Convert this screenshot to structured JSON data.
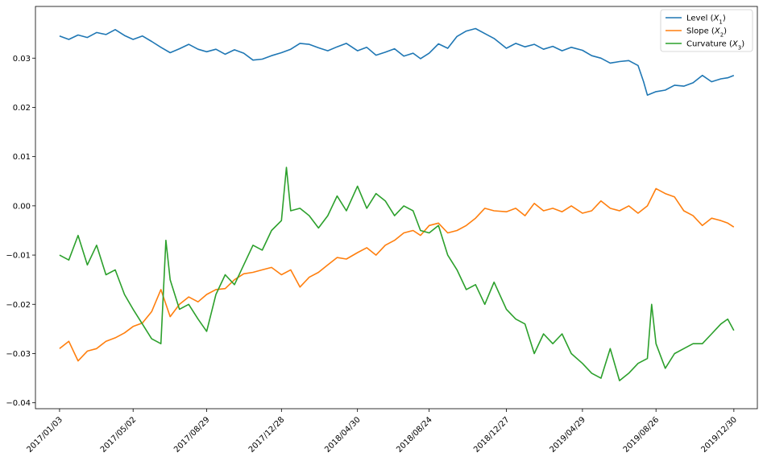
{
  "chart_data": {
    "type": "line",
    "title": "",
    "xlabel": "",
    "ylabel": "",
    "x_type": "date",
    "xlim": [
      "2016-11-25",
      "2020-02-06"
    ],
    "ylim": [
      -0.0412,
      0.0405
    ],
    "grid": false,
    "legend_position": "top-right",
    "x_ticks": [
      {
        "date": "2017-01-03",
        "label": "2017/01/03"
      },
      {
        "date": "2017-05-02",
        "label": "2017/05/02"
      },
      {
        "date": "2017-08-29",
        "label": "2017/08/29"
      },
      {
        "date": "2017-12-28",
        "label": "2017/12/28"
      },
      {
        "date": "2018-04-30",
        "label": "2018/04/30"
      },
      {
        "date": "2018-08-24",
        "label": "2018/08/24"
      },
      {
        "date": "2018-12-27",
        "label": "2018/12/27"
      },
      {
        "date": "2019-04-29",
        "label": "2019/04/29"
      },
      {
        "date": "2019-08-26",
        "label": "2019/08/26"
      },
      {
        "date": "2019-12-30",
        "label": "2019/12/30"
      }
    ],
    "y_ticks": [
      {
        "value": 0.03,
        "label": "0.03"
      },
      {
        "value": 0.02,
        "label": "0.02"
      },
      {
        "value": 0.01,
        "label": "0.01"
      },
      {
        "value": 0.0,
        "label": "0.00"
      },
      {
        "value": -0.01,
        "label": "−0.01"
      },
      {
        "value": -0.02,
        "label": "−0.02"
      },
      {
        "value": -0.03,
        "label": "−0.03"
      },
      {
        "value": -0.04,
        "label": "−0.04"
      }
    ],
    "series": [
      {
        "name": "Level (X1)",
        "legend_main": "Level (",
        "legend_var": "X",
        "legend_sub": "1",
        "legend_close": ")",
        "color": "#1f77b4",
        "points": [
          [
            "2017-01-03",
            0.0345
          ],
          [
            "2017-01-18",
            0.0338
          ],
          [
            "2017-02-02",
            0.0347
          ],
          [
            "2017-02-17",
            0.0342
          ],
          [
            "2017-03-04",
            0.0352
          ],
          [
            "2017-03-19",
            0.0348
          ],
          [
            "2017-04-03",
            0.0358
          ],
          [
            "2017-04-18",
            0.0346
          ],
          [
            "2017-05-02",
            0.0338
          ],
          [
            "2017-05-17",
            0.0345
          ],
          [
            "2017-06-01",
            0.0334
          ],
          [
            "2017-06-16",
            0.0322
          ],
          [
            "2017-07-01",
            0.0311
          ],
          [
            "2017-07-16",
            0.0319
          ],
          [
            "2017-07-31",
            0.0328
          ],
          [
            "2017-08-15",
            0.0318
          ],
          [
            "2017-08-29",
            0.0313
          ],
          [
            "2017-09-13",
            0.0318
          ],
          [
            "2017-09-28",
            0.0308
          ],
          [
            "2017-10-13",
            0.0317
          ],
          [
            "2017-10-28",
            0.031
          ],
          [
            "2017-11-12",
            0.0296
          ],
          [
            "2017-11-27",
            0.0298
          ],
          [
            "2017-12-12",
            0.0305
          ],
          [
            "2017-12-28",
            0.0311
          ],
          [
            "2018-01-12",
            0.0318
          ],
          [
            "2018-01-27",
            0.033
          ],
          [
            "2018-02-11",
            0.0328
          ],
          [
            "2018-02-26",
            0.0321
          ],
          [
            "2018-03-13",
            0.0315
          ],
          [
            "2018-03-28",
            0.0323
          ],
          [
            "2018-04-12",
            0.033
          ],
          [
            "2018-04-30",
            0.0315
          ],
          [
            "2018-05-15",
            0.0322
          ],
          [
            "2018-05-30",
            0.0306
          ],
          [
            "2018-06-14",
            0.0312
          ],
          [
            "2018-06-29",
            0.0319
          ],
          [
            "2018-07-14",
            0.0304
          ],
          [
            "2018-07-29",
            0.031
          ],
          [
            "2018-08-10",
            0.0299
          ],
          [
            "2018-08-24",
            0.031
          ],
          [
            "2018-09-08",
            0.0329
          ],
          [
            "2018-09-23",
            0.032
          ],
          [
            "2018-10-08",
            0.0344
          ],
          [
            "2018-10-23",
            0.0355
          ],
          [
            "2018-11-07",
            0.036
          ],
          [
            "2018-11-22",
            0.035
          ],
          [
            "2018-12-07",
            0.034
          ],
          [
            "2018-12-27",
            0.032
          ],
          [
            "2019-01-11",
            0.033
          ],
          [
            "2019-01-26",
            0.0323
          ],
          [
            "2019-02-10",
            0.0328
          ],
          [
            "2019-02-25",
            0.0318
          ],
          [
            "2019-03-12",
            0.0324
          ],
          [
            "2019-03-27",
            0.0315
          ],
          [
            "2019-04-11",
            0.0322
          ],
          [
            "2019-04-29",
            0.0316
          ],
          [
            "2019-05-14",
            0.0305
          ],
          [
            "2019-05-29",
            0.03
          ],
          [
            "2019-06-13",
            0.029
          ],
          [
            "2019-06-28",
            0.0293
          ],
          [
            "2019-07-13",
            0.0295
          ],
          [
            "2019-07-28",
            0.0285
          ],
          [
            "2019-08-06",
            0.0252
          ],
          [
            "2019-08-12",
            0.0225
          ],
          [
            "2019-08-26",
            0.0232
          ],
          [
            "2019-09-10",
            0.0235
          ],
          [
            "2019-09-25",
            0.0245
          ],
          [
            "2019-10-10",
            0.0243
          ],
          [
            "2019-10-25",
            0.025
          ],
          [
            "2019-11-09",
            0.0265
          ],
          [
            "2019-11-24",
            0.0252
          ],
          [
            "2019-12-09",
            0.0258
          ],
          [
            "2019-12-20",
            0.026
          ],
          [
            "2019-12-30",
            0.0265
          ]
        ]
      },
      {
        "name": "Slope (X2)",
        "legend_main": "Slope (",
        "legend_var": "X",
        "legend_sub": "2",
        "legend_close": ")",
        "color": "#ff7f0e",
        "points": [
          [
            "2017-01-03",
            -0.029
          ],
          [
            "2017-01-18",
            -0.0275
          ],
          [
            "2017-02-02",
            -0.0315
          ],
          [
            "2017-02-17",
            -0.0295
          ],
          [
            "2017-03-04",
            -0.029
          ],
          [
            "2017-03-19",
            -0.0275
          ],
          [
            "2017-04-03",
            -0.0268
          ],
          [
            "2017-04-18",
            -0.0258
          ],
          [
            "2017-05-02",
            -0.0245
          ],
          [
            "2017-05-17",
            -0.0238
          ],
          [
            "2017-06-01",
            -0.0215
          ],
          [
            "2017-06-16",
            -0.017
          ],
          [
            "2017-07-01",
            -0.0225
          ],
          [
            "2017-07-16",
            -0.02
          ],
          [
            "2017-07-31",
            -0.0185
          ],
          [
            "2017-08-15",
            -0.0195
          ],
          [
            "2017-08-29",
            -0.018
          ],
          [
            "2017-09-13",
            -0.017
          ],
          [
            "2017-09-28",
            -0.0168
          ],
          [
            "2017-10-13",
            -0.015
          ],
          [
            "2017-10-28",
            -0.0138
          ],
          [
            "2017-11-12",
            -0.0135
          ],
          [
            "2017-11-27",
            -0.013
          ],
          [
            "2017-12-12",
            -0.0125
          ],
          [
            "2017-12-28",
            -0.014
          ],
          [
            "2018-01-12",
            -0.013
          ],
          [
            "2018-01-27",
            -0.0165
          ],
          [
            "2018-02-11",
            -0.0145
          ],
          [
            "2018-02-26",
            -0.0135
          ],
          [
            "2018-03-13",
            -0.012
          ],
          [
            "2018-03-28",
            -0.0105
          ],
          [
            "2018-04-12",
            -0.0108
          ],
          [
            "2018-04-30",
            -0.0095
          ],
          [
            "2018-05-15",
            -0.0085
          ],
          [
            "2018-05-30",
            -0.01
          ],
          [
            "2018-06-14",
            -0.008
          ],
          [
            "2018-06-29",
            -0.007
          ],
          [
            "2018-07-14",
            -0.0055
          ],
          [
            "2018-07-29",
            -0.005
          ],
          [
            "2018-08-10",
            -0.006
          ],
          [
            "2018-08-24",
            -0.004
          ],
          [
            "2018-09-08",
            -0.0035
          ],
          [
            "2018-09-23",
            -0.0055
          ],
          [
            "2018-10-08",
            -0.005
          ],
          [
            "2018-10-23",
            -0.004
          ],
          [
            "2018-11-07",
            -0.0025
          ],
          [
            "2018-11-22",
            -0.0005
          ],
          [
            "2018-12-07",
            -0.001
          ],
          [
            "2018-12-27",
            -0.0012
          ],
          [
            "2019-01-11",
            -0.0005
          ],
          [
            "2019-01-26",
            -0.002
          ],
          [
            "2019-02-10",
            0.0005
          ],
          [
            "2019-02-25",
            -0.001
          ],
          [
            "2019-03-12",
            -0.0005
          ],
          [
            "2019-03-27",
            -0.0012
          ],
          [
            "2019-04-11",
            0.0
          ],
          [
            "2019-04-29",
            -0.0015
          ],
          [
            "2019-05-14",
            -0.001
          ],
          [
            "2019-05-29",
            0.001
          ],
          [
            "2019-06-13",
            -0.0005
          ],
          [
            "2019-06-28",
            -0.001
          ],
          [
            "2019-07-13",
            0.0
          ],
          [
            "2019-07-28",
            -0.0015
          ],
          [
            "2019-08-12",
            0.0
          ],
          [
            "2019-08-26",
            0.0035
          ],
          [
            "2019-09-10",
            0.0025
          ],
          [
            "2019-09-25",
            0.0018
          ],
          [
            "2019-10-10",
            -0.001
          ],
          [
            "2019-10-25",
            -0.002
          ],
          [
            "2019-11-09",
            -0.004
          ],
          [
            "2019-11-24",
            -0.0025
          ],
          [
            "2019-12-09",
            -0.003
          ],
          [
            "2019-12-20",
            -0.0035
          ],
          [
            "2019-12-30",
            -0.0043
          ]
        ]
      },
      {
        "name": "Curvature (X3)",
        "legend_main": "Curvature (",
        "legend_var": "X",
        "legend_sub": "3",
        "legend_close": ")",
        "color": "#2ca02c",
        "points": [
          [
            "2017-01-03",
            -0.01
          ],
          [
            "2017-01-18",
            -0.011
          ],
          [
            "2017-02-02",
            -0.006
          ],
          [
            "2017-02-17",
            -0.012
          ],
          [
            "2017-03-04",
            -0.008
          ],
          [
            "2017-03-19",
            -0.014
          ],
          [
            "2017-04-03",
            -0.013
          ],
          [
            "2017-04-18",
            -0.018
          ],
          [
            "2017-05-02",
            -0.021
          ],
          [
            "2017-05-17",
            -0.024
          ],
          [
            "2017-06-01",
            -0.027
          ],
          [
            "2017-06-16",
            -0.028
          ],
          [
            "2017-06-24",
            -0.007
          ],
          [
            "2017-07-01",
            -0.015
          ],
          [
            "2017-07-16",
            -0.021
          ],
          [
            "2017-07-31",
            -0.02
          ],
          [
            "2017-08-15",
            -0.023
          ],
          [
            "2017-08-29",
            -0.0255
          ],
          [
            "2017-09-13",
            -0.018
          ],
          [
            "2017-09-28",
            -0.014
          ],
          [
            "2017-10-13",
            -0.016
          ],
          [
            "2017-10-28",
            -0.012
          ],
          [
            "2017-11-12",
            -0.008
          ],
          [
            "2017-11-27",
            -0.009
          ],
          [
            "2017-12-12",
            -0.005
          ],
          [
            "2017-12-28",
            -0.003
          ],
          [
            "2018-01-05",
            0.0078
          ],
          [
            "2018-01-12",
            -0.001
          ],
          [
            "2018-01-27",
            -0.0005
          ],
          [
            "2018-02-11",
            -0.002
          ],
          [
            "2018-02-26",
            -0.0045
          ],
          [
            "2018-03-13",
            -0.002
          ],
          [
            "2018-03-28",
            0.002
          ],
          [
            "2018-04-12",
            -0.001
          ],
          [
            "2018-04-30",
            0.004
          ],
          [
            "2018-05-15",
            -0.0005
          ],
          [
            "2018-05-30",
            0.0025
          ],
          [
            "2018-06-14",
            0.001
          ],
          [
            "2018-06-29",
            -0.002
          ],
          [
            "2018-07-14",
            0.0
          ],
          [
            "2018-07-29",
            -0.001
          ],
          [
            "2018-08-10",
            -0.005
          ],
          [
            "2018-08-24",
            -0.0055
          ],
          [
            "2018-09-08",
            -0.004
          ],
          [
            "2018-09-23",
            -0.01
          ],
          [
            "2018-10-08",
            -0.013
          ],
          [
            "2018-10-23",
            -0.017
          ],
          [
            "2018-11-07",
            -0.016
          ],
          [
            "2018-11-22",
            -0.02
          ],
          [
            "2018-12-07",
            -0.0155
          ],
          [
            "2018-12-27",
            -0.021
          ],
          [
            "2019-01-11",
            -0.023
          ],
          [
            "2019-01-26",
            -0.024
          ],
          [
            "2019-02-10",
            -0.03
          ],
          [
            "2019-02-25",
            -0.026
          ],
          [
            "2019-03-12",
            -0.028
          ],
          [
            "2019-03-27",
            -0.026
          ],
          [
            "2019-04-11",
            -0.03
          ],
          [
            "2019-04-29",
            -0.032
          ],
          [
            "2019-05-14",
            -0.034
          ],
          [
            "2019-05-29",
            -0.035
          ],
          [
            "2019-06-13",
            -0.029
          ],
          [
            "2019-06-28",
            -0.0355
          ],
          [
            "2019-07-13",
            -0.034
          ],
          [
            "2019-07-28",
            -0.032
          ],
          [
            "2019-08-12",
            -0.031
          ],
          [
            "2019-08-19",
            -0.02
          ],
          [
            "2019-08-26",
            -0.028
          ],
          [
            "2019-09-10",
            -0.033
          ],
          [
            "2019-09-25",
            -0.03
          ],
          [
            "2019-10-10",
            -0.029
          ],
          [
            "2019-10-25",
            -0.028
          ],
          [
            "2019-11-09",
            -0.028
          ],
          [
            "2019-11-24",
            -0.026
          ],
          [
            "2019-12-09",
            -0.024
          ],
          [
            "2019-12-20",
            -0.023
          ],
          [
            "2019-12-30",
            -0.0253
          ]
        ]
      }
    ]
  }
}
